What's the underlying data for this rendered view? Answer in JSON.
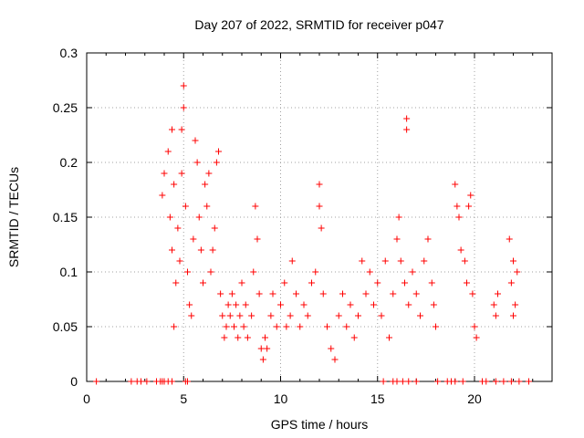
{
  "chart_data": {
    "type": "scatter",
    "title": "Day 207 of 2022, SRMTID for receiver p047",
    "xlabel": "GPS time / hours",
    "ylabel": "SRMTID / TECUs",
    "xlim": [
      0,
      24
    ],
    "ylim": [
      0,
      0.3
    ],
    "xticks": [
      0,
      5,
      10,
      15,
      20
    ],
    "yticks": [
      0,
      0.05,
      0.1,
      0.15,
      0.2,
      0.25,
      0.3
    ],
    "ytick_labels": [
      "0",
      "0.05",
      "0.1",
      "0.15",
      "0.2",
      "0.25",
      "0.3"
    ],
    "grid": true,
    "marker": "plus",
    "color": "#ff0000",
    "series": [
      {
        "name": "SRMTID",
        "points": [
          [
            0.5,
            0.0
          ],
          [
            2.3,
            0.0
          ],
          [
            2.6,
            0.0
          ],
          [
            2.8,
            0.0
          ],
          [
            3.1,
            0.0
          ],
          [
            3.6,
            0.0
          ],
          [
            3.8,
            0.0
          ],
          [
            3.9,
            0.0
          ],
          [
            4.0,
            0.0
          ],
          [
            4.2,
            0.0
          ],
          [
            4.4,
            0.0
          ],
          [
            5.1,
            0.0
          ],
          [
            5.2,
            0.0
          ],
          [
            15.3,
            0.0
          ],
          [
            15.8,
            0.0
          ],
          [
            16.0,
            0.0
          ],
          [
            16.3,
            0.0
          ],
          [
            16.6,
            0.0
          ],
          [
            17.0,
            0.0
          ],
          [
            18.1,
            0.0
          ],
          [
            18.6,
            0.0
          ],
          [
            18.8,
            0.0
          ],
          [
            19.0,
            0.0
          ],
          [
            19.4,
            0.0
          ],
          [
            20.4,
            0.0
          ],
          [
            20.6,
            0.0
          ],
          [
            21.1,
            0.0
          ],
          [
            21.5,
            0.0
          ],
          [
            21.9,
            0.0
          ],
          [
            22.3,
            0.0
          ],
          [
            22.8,
            0.0
          ],
          [
            3.9,
            0.17
          ],
          [
            4.0,
            0.19
          ],
          [
            4.2,
            0.21
          ],
          [
            4.3,
            0.15
          ],
          [
            4.4,
            0.12
          ],
          [
            4.4,
            0.23
          ],
          [
            4.5,
            0.18
          ],
          [
            4.5,
            0.05
          ],
          [
            4.6,
            0.09
          ],
          [
            4.7,
            0.14
          ],
          [
            4.8,
            0.11
          ],
          [
            4.9,
            0.23
          ],
          [
            4.9,
            0.19
          ],
          [
            5.0,
            0.27
          ],
          [
            5.0,
            0.25
          ],
          [
            5.1,
            0.16
          ],
          [
            5.2,
            0.1
          ],
          [
            5.3,
            0.07
          ],
          [
            5.4,
            0.06
          ],
          [
            5.5,
            0.13
          ],
          [
            5.6,
            0.22
          ],
          [
            5.7,
            0.2
          ],
          [
            5.8,
            0.15
          ],
          [
            5.9,
            0.12
          ],
          [
            6.0,
            0.09
          ],
          [
            6.1,
            0.18
          ],
          [
            6.2,
            0.16
          ],
          [
            6.3,
            0.19
          ],
          [
            6.4,
            0.1
          ],
          [
            6.5,
            0.12
          ],
          [
            6.6,
            0.14
          ],
          [
            6.7,
            0.2
          ],
          [
            6.8,
            0.21
          ],
          [
            6.9,
            0.08
          ],
          [
            7.0,
            0.06
          ],
          [
            7.1,
            0.04
          ],
          [
            7.2,
            0.05
          ],
          [
            7.3,
            0.07
          ],
          [
            7.4,
            0.06
          ],
          [
            7.5,
            0.08
          ],
          [
            7.6,
            0.05
          ],
          [
            7.7,
            0.07
          ],
          [
            7.8,
            0.04
          ],
          [
            7.9,
            0.06
          ],
          [
            8.0,
            0.09
          ],
          [
            8.1,
            0.05
          ],
          [
            8.2,
            0.07
          ],
          [
            8.3,
            0.04
          ],
          [
            8.5,
            0.06
          ],
          [
            8.6,
            0.1
          ],
          [
            8.7,
            0.16
          ],
          [
            8.8,
            0.13
          ],
          [
            8.9,
            0.08
          ],
          [
            9.0,
            0.03
          ],
          [
            9.1,
            0.02
          ],
          [
            9.2,
            0.04
          ],
          [
            9.3,
            0.03
          ],
          [
            9.5,
            0.06
          ],
          [
            9.6,
            0.08
          ],
          [
            9.8,
            0.05
          ],
          [
            10.0,
            0.07
          ],
          [
            10.2,
            0.09
          ],
          [
            10.3,
            0.05
          ],
          [
            10.5,
            0.06
          ],
          [
            10.6,
            0.11
          ],
          [
            10.8,
            0.08
          ],
          [
            11.0,
            0.05
          ],
          [
            11.2,
            0.07
          ],
          [
            11.4,
            0.06
          ],
          [
            11.6,
            0.09
          ],
          [
            11.8,
            0.1
          ],
          [
            12.0,
            0.18
          ],
          [
            12.0,
            0.16
          ],
          [
            12.1,
            0.14
          ],
          [
            12.2,
            0.08
          ],
          [
            12.4,
            0.05
          ],
          [
            12.6,
            0.03
          ],
          [
            12.8,
            0.02
          ],
          [
            13.0,
            0.06
          ],
          [
            13.2,
            0.08
          ],
          [
            13.4,
            0.05
          ],
          [
            13.6,
            0.07
          ],
          [
            13.8,
            0.04
          ],
          [
            14.0,
            0.06
          ],
          [
            14.2,
            0.11
          ],
          [
            14.4,
            0.08
          ],
          [
            14.6,
            0.1
          ],
          [
            14.8,
            0.07
          ],
          [
            15.0,
            0.09
          ],
          [
            15.2,
            0.06
          ],
          [
            15.4,
            0.11
          ],
          [
            15.6,
            0.04
          ],
          [
            15.8,
            0.08
          ],
          [
            16.0,
            0.13
          ],
          [
            16.1,
            0.15
          ],
          [
            16.2,
            0.11
          ],
          [
            16.4,
            0.09
          ],
          [
            16.5,
            0.23
          ],
          [
            16.5,
            0.24
          ],
          [
            16.6,
            0.07
          ],
          [
            16.8,
            0.1
          ],
          [
            17.0,
            0.08
          ],
          [
            17.2,
            0.06
          ],
          [
            17.4,
            0.11
          ],
          [
            17.6,
            0.13
          ],
          [
            17.8,
            0.09
          ],
          [
            17.9,
            0.07
          ],
          [
            18.0,
            0.05
          ],
          [
            19.0,
            0.18
          ],
          [
            19.1,
            0.16
          ],
          [
            19.2,
            0.15
          ],
          [
            19.3,
            0.12
          ],
          [
            19.5,
            0.11
          ],
          [
            19.6,
            0.09
          ],
          [
            19.7,
            0.16
          ],
          [
            19.8,
            0.17
          ],
          [
            19.9,
            0.08
          ],
          [
            20.0,
            0.05
          ],
          [
            20.1,
            0.04
          ],
          [
            21.0,
            0.07
          ],
          [
            21.1,
            0.06
          ],
          [
            21.2,
            0.08
          ],
          [
            21.8,
            0.13
          ],
          [
            21.9,
            0.09
          ],
          [
            22.0,
            0.11
          ],
          [
            22.1,
            0.07
          ],
          [
            22.2,
            0.1
          ],
          [
            22.0,
            0.06
          ]
        ]
      }
    ]
  }
}
